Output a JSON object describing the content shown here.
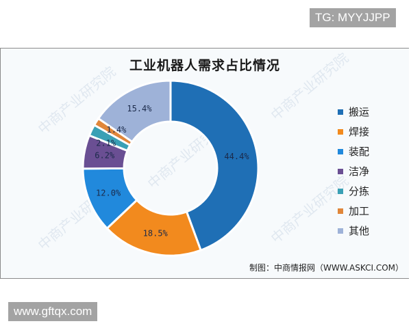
{
  "overlay": {
    "top_tag": "TG: MYYJJPP",
    "bottom_tag": "www.gftqx.com"
  },
  "chart": {
    "title": "工业机器人需求占比情况",
    "source": "制图：中商情报网（WWW.ASKCI.COM）",
    "watermark": "中商产业研究院"
  },
  "chart_data": {
    "type": "pie",
    "variant": "donut",
    "title": "工业机器人需求占比情况",
    "categories": [
      "搬运",
      "焊接",
      "装配",
      "洁净",
      "分拣",
      "加工",
      "其他"
    ],
    "values": [
      44.4,
      18.5,
      12.0,
      6.2,
      2.1,
      1.4,
      15.4
    ],
    "labels": [
      "44.4%",
      "18.5%",
      "12.0%",
      "6.2%",
      "2.1%",
      "1.4%",
      "15.4%"
    ],
    "colors": [
      "#1f6fb5",
      "#f28a1e",
      "#2189dc",
      "#6a4f93",
      "#3aa0b5",
      "#e0863a",
      "#9eb2d8"
    ],
    "legend_position": "right",
    "start_angle_deg": 0,
    "direction": "clockwise",
    "source": "制图：中商情报网（WWW.ASKCI.COM）"
  },
  "legend": {
    "items": [
      {
        "label": "搬运",
        "color": "#1f6fb5"
      },
      {
        "label": "焊接",
        "color": "#f28a1e"
      },
      {
        "label": "装配",
        "color": "#2189dc"
      },
      {
        "label": "洁净",
        "color": "#6a4f93"
      },
      {
        "label": "分拣",
        "color": "#3aa0b5"
      },
      {
        "label": "加工",
        "color": "#e0863a"
      },
      {
        "label": "其他",
        "color": "#9eb2d8"
      }
    ]
  }
}
